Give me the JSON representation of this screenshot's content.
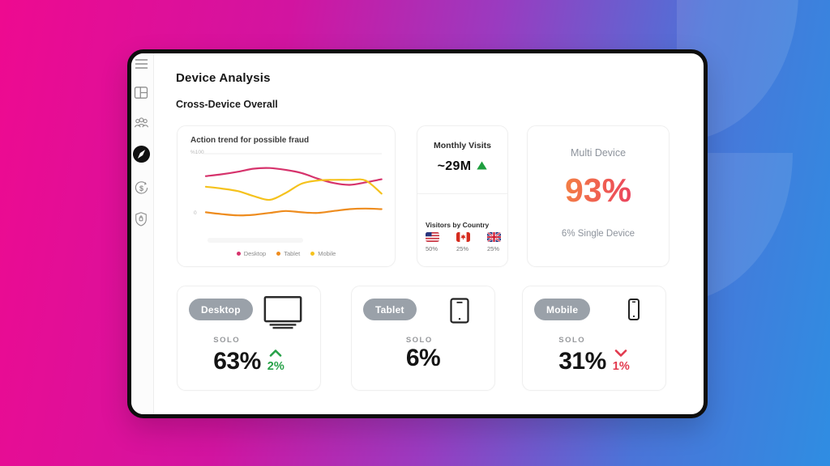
{
  "header": {
    "title": "Device Analysis",
    "subtitle": "Cross-Device Overall"
  },
  "sidebar": {
    "items": [
      {
        "name": "menu",
        "icon": "hamburger-menu-icon",
        "active": false
      },
      {
        "name": "dashboard",
        "icon": "dashboard-layout-icon",
        "active": false
      },
      {
        "name": "audience",
        "icon": "users-group-icon",
        "active": false
      },
      {
        "name": "explore",
        "icon": "compass-icon",
        "active": true
      },
      {
        "name": "transactions",
        "icon": "dollar-cycle-icon",
        "active": false
      },
      {
        "name": "security",
        "icon": "shield-lock-icon",
        "active": false
      }
    ]
  },
  "chart_card": {
    "title": "Action trend for possible fraud",
    "y_axis_top_label": "%100",
    "y_axis_zero_label": "0"
  },
  "chart_data": {
    "type": "line",
    "title": "Action trend for possible fraud",
    "ylim": [
      0,
      100
    ],
    "y_tick_labels": [
      "%100",
      "0"
    ],
    "grid": "top-line-only",
    "legend_position": "bottom",
    "x": [
      0,
      1,
      2,
      3,
      4,
      5,
      6,
      7,
      8,
      9,
      10,
      11
    ],
    "series": [
      {
        "name": "Desktop",
        "color": "#d6336c",
        "values": [
          64,
          67,
          71,
          76,
          77,
          74,
          69,
          60,
          53,
          50,
          54,
          59
        ]
      },
      {
        "name": "Tablet",
        "color": "#ee8c1e",
        "values": [
          6,
          3,
          1,
          2,
          5,
          8,
          6,
          5,
          8,
          11,
          12,
          11
        ]
      },
      {
        "name": "Mobile",
        "color": "#f5c21d",
        "values": [
          47,
          44,
          40,
          32,
          26,
          37,
          52,
          57,
          58,
          58,
          57,
          36
        ]
      }
    ]
  },
  "monthly_card": {
    "title": "Monthly Visits",
    "value": "~29M",
    "trend": "up",
    "countries_title": "Visitors by Country",
    "countries": [
      {
        "country": "United States",
        "share": "50%"
      },
      {
        "country": "Canada",
        "share": "25%"
      },
      {
        "country": "United Kingdom",
        "share": "25%"
      }
    ]
  },
  "multi_device_card": {
    "title": "Multi Device",
    "value": "93%",
    "subtitle": "6% Single Device"
  },
  "device_cards": [
    {
      "label": "Desktop",
      "icon": "desktop-monitor",
      "metric_label": "SOLO",
      "value": "63%",
      "delta": "2%",
      "delta_direction": "up"
    },
    {
      "label": "Tablet",
      "icon": "tablet",
      "metric_label": "SOLO",
      "value": "6%",
      "delta": "",
      "delta_direction": ""
    },
    {
      "label": "Mobile",
      "icon": "smartphone",
      "metric_label": "SOLO",
      "value": "31%",
      "delta": "1%",
      "delta_direction": "down"
    }
  ],
  "colors": {
    "background_gradient": [
      "#ee0a90",
      "#2f8de2"
    ],
    "window_border": "#0e0e0e",
    "desktop_line": "#d6336c",
    "tablet_line": "#ee8c1e",
    "mobile_line": "#f5c21d",
    "positive": "#27a148",
    "negative": "#e23a4e",
    "pill_background": "#9aa1a9",
    "multi_value_gradient": [
      "#f5923e",
      "#e42a6d"
    ]
  }
}
